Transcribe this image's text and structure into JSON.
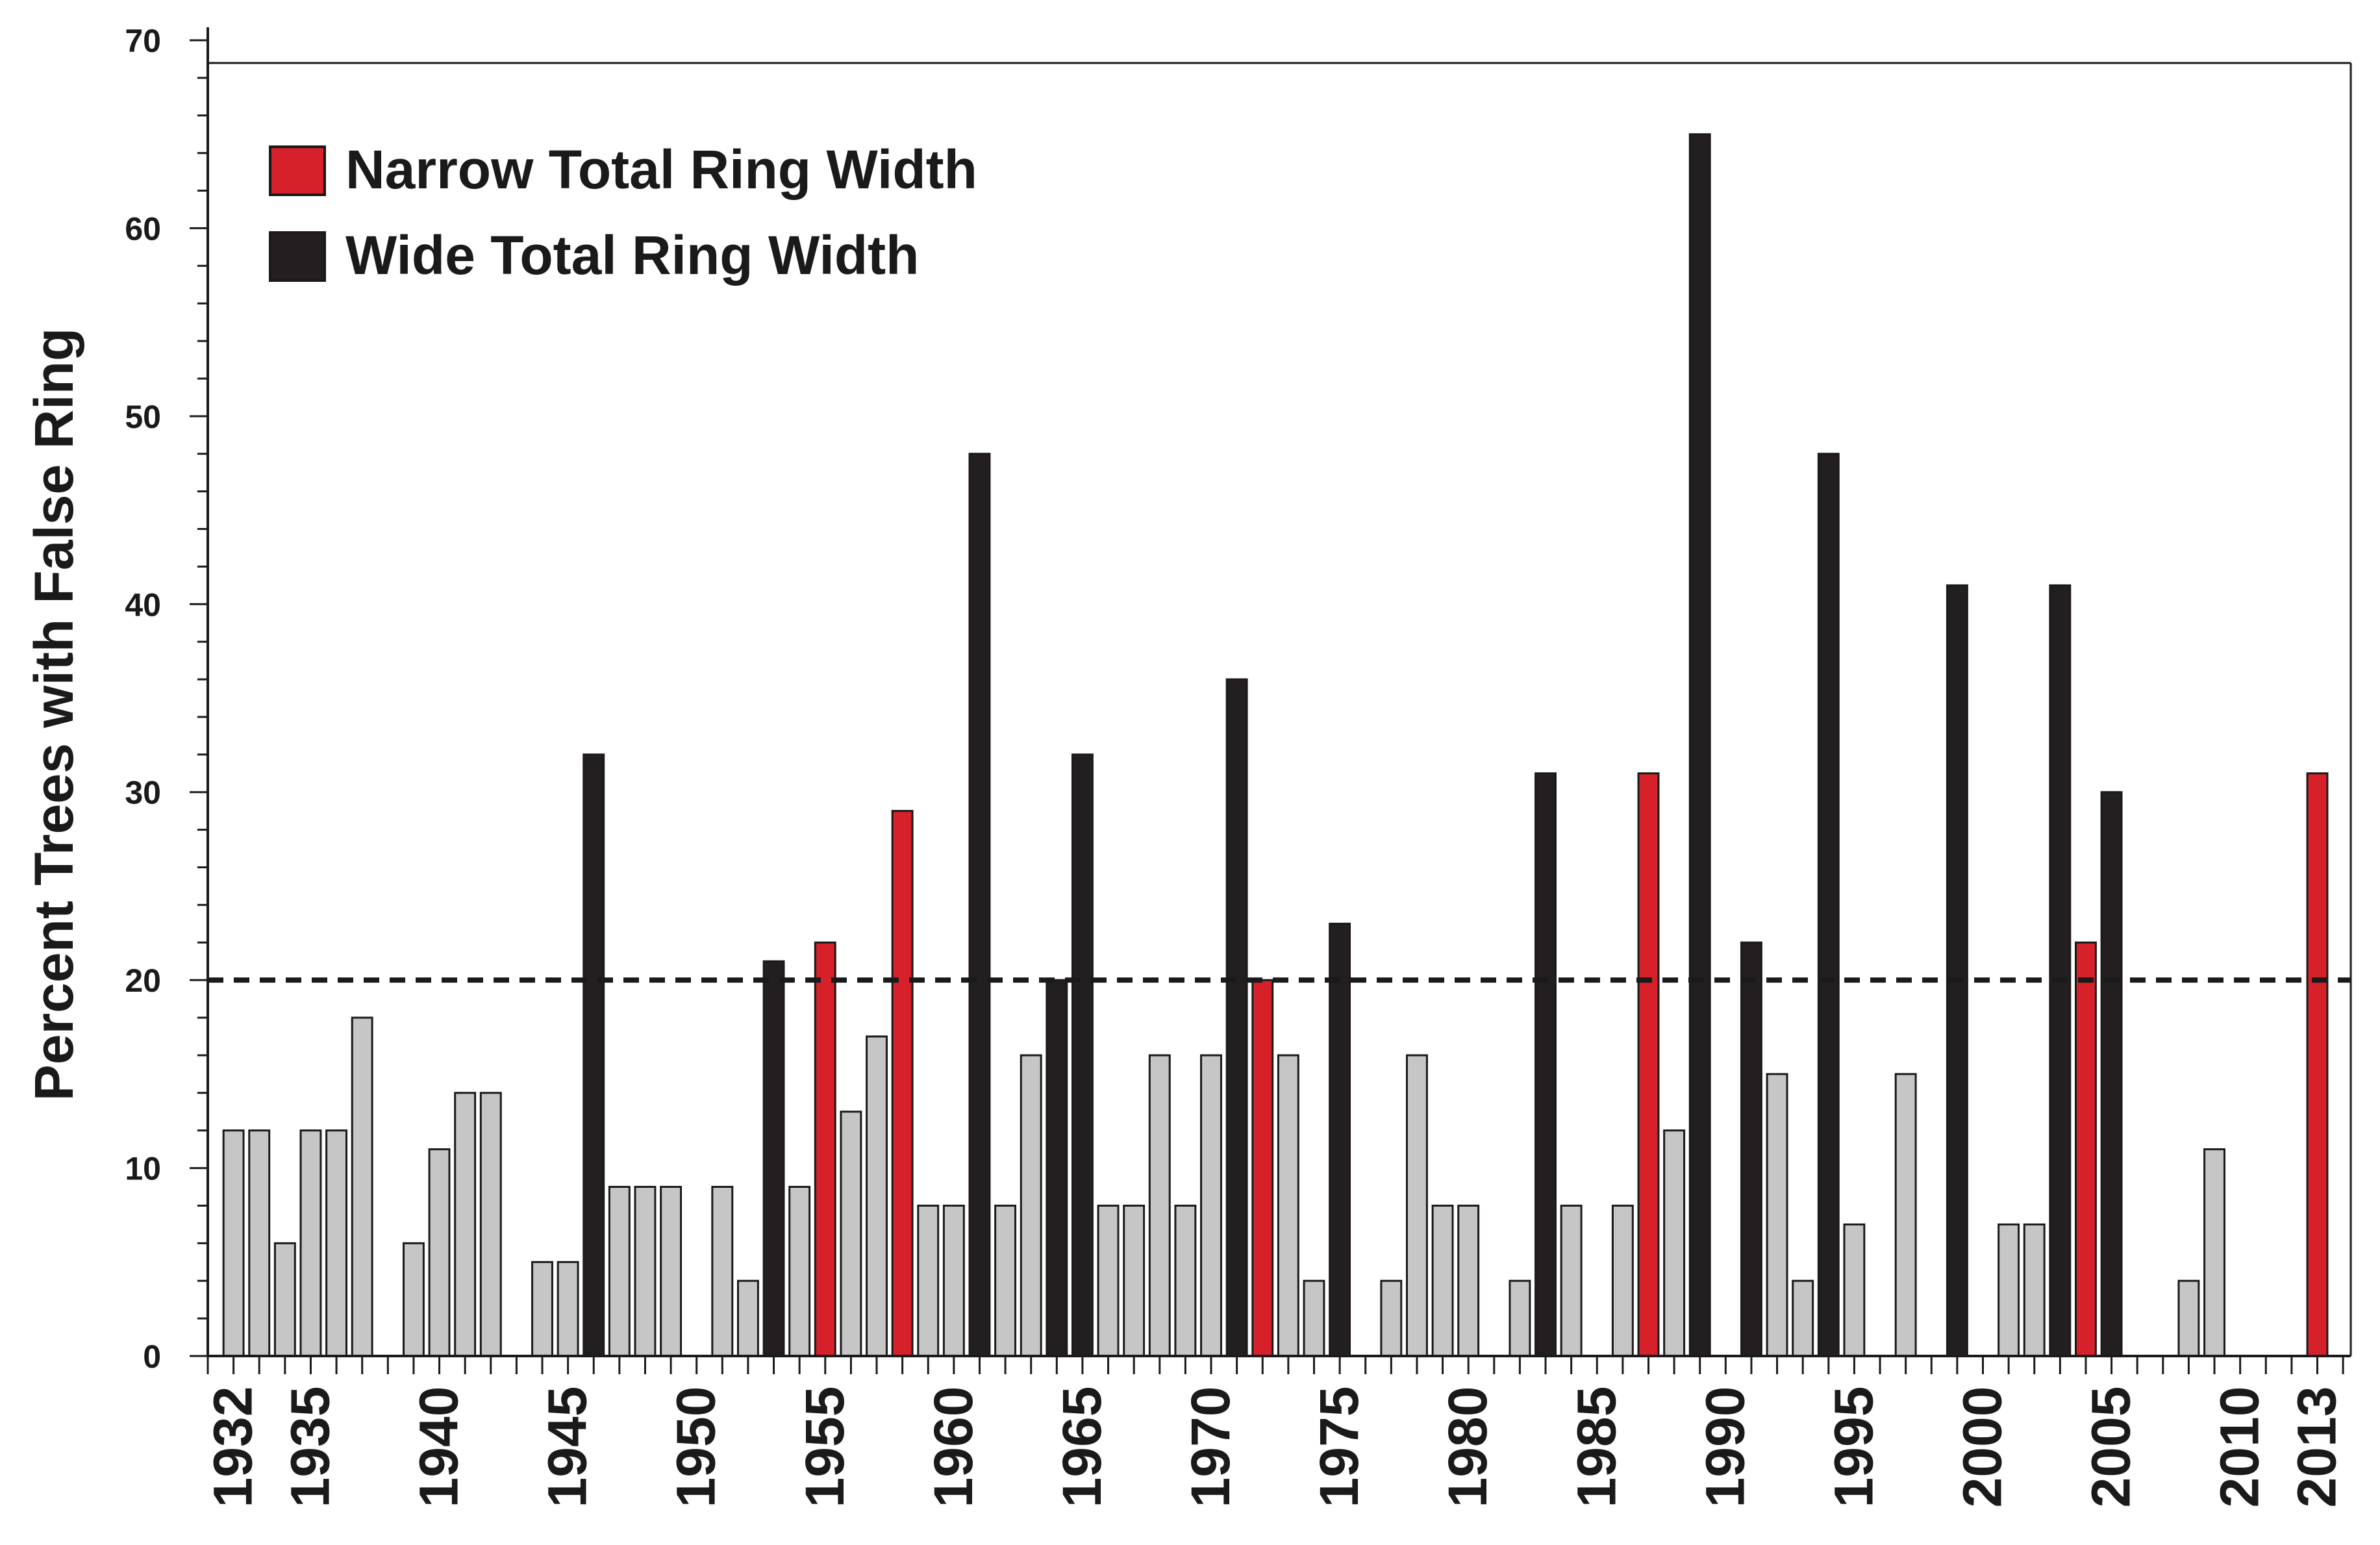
{
  "chart_data": {
    "type": "bar",
    "title": "",
    "xlabel": "",
    "ylabel": "Percent Trees with False Ring",
    "ylim": [
      0,
      70
    ],
    "yticks": [
      0,
      10,
      20,
      30,
      40,
      50,
      60,
      70
    ],
    "xlim": [
      1931,
      2014.3
    ],
    "xtick_labels": [
      "1932",
      "1935",
      "1940",
      "1945",
      "1950",
      "1955",
      "1960",
      "1965",
      "1970",
      "1975",
      "1980",
      "1985",
      "1990",
      "1995",
      "2000",
      "2005",
      "2010",
      "2013"
    ],
    "threshold": 20,
    "grid": false,
    "legend_position": "top-left",
    "legend": [
      {
        "key": "narrow",
        "label": "Narrow Total Ring Width",
        "color": "#d6202a"
      },
      {
        "key": "wide",
        "label": "Wide Total Ring Width",
        "color": "#231f20"
      }
    ],
    "colors": {
      "narrow": "#d6202a",
      "wide": "#231f20",
      "other": "#c6c6c6"
    },
    "bars": [
      {
        "year": 1932,
        "value": 12,
        "category": "other"
      },
      {
        "year": 1933,
        "value": 12,
        "category": "other"
      },
      {
        "year": 1934,
        "value": 6,
        "category": "other"
      },
      {
        "year": 1935,
        "value": 12,
        "category": "other"
      },
      {
        "year": 1936,
        "value": 12,
        "category": "other"
      },
      {
        "year": 1937,
        "value": 18,
        "category": "other"
      },
      {
        "year": 1939,
        "value": 6,
        "category": "other"
      },
      {
        "year": 1940,
        "value": 11,
        "category": "other"
      },
      {
        "year": 1941,
        "value": 14,
        "category": "other"
      },
      {
        "year": 1942,
        "value": 14,
        "category": "other"
      },
      {
        "year": 1944,
        "value": 5,
        "category": "other"
      },
      {
        "year": 1945,
        "value": 5,
        "category": "other"
      },
      {
        "year": 1946,
        "value": 32,
        "category": "wide"
      },
      {
        "year": 1947,
        "value": 9,
        "category": "other"
      },
      {
        "year": 1948,
        "value": 9,
        "category": "other"
      },
      {
        "year": 1949,
        "value": 9,
        "category": "other"
      },
      {
        "year": 1951,
        "value": 9,
        "category": "other"
      },
      {
        "year": 1952,
        "value": 4,
        "category": "other"
      },
      {
        "year": 1953,
        "value": 21,
        "category": "wide"
      },
      {
        "year": 1954,
        "value": 9,
        "category": "other"
      },
      {
        "year": 1955,
        "value": 22,
        "category": "narrow"
      },
      {
        "year": 1956,
        "value": 13,
        "category": "other"
      },
      {
        "year": 1957,
        "value": 17,
        "category": "other"
      },
      {
        "year": 1958,
        "value": 29,
        "category": "narrow"
      },
      {
        "year": 1959,
        "value": 8,
        "category": "other"
      },
      {
        "year": 1960,
        "value": 8,
        "category": "other"
      },
      {
        "year": 1961,
        "value": 48,
        "category": "wide"
      },
      {
        "year": 1962,
        "value": 8,
        "category": "other"
      },
      {
        "year": 1963,
        "value": 16,
        "category": "other"
      },
      {
        "year": 1964,
        "value": 20,
        "category": "wide"
      },
      {
        "year": 1965,
        "value": 32,
        "category": "wide"
      },
      {
        "year": 1966,
        "value": 8,
        "category": "other"
      },
      {
        "year": 1967,
        "value": 8,
        "category": "other"
      },
      {
        "year": 1968,
        "value": 16,
        "category": "other"
      },
      {
        "year": 1969,
        "value": 8,
        "category": "other"
      },
      {
        "year": 1970,
        "value": 16,
        "category": "other"
      },
      {
        "year": 1971,
        "value": 36,
        "category": "wide"
      },
      {
        "year": 1972,
        "value": 20,
        "category": "narrow"
      },
      {
        "year": 1973,
        "value": 16,
        "category": "other"
      },
      {
        "year": 1974,
        "value": 4,
        "category": "other"
      },
      {
        "year": 1975,
        "value": 23,
        "category": "wide"
      },
      {
        "year": 1977,
        "value": 4,
        "category": "other"
      },
      {
        "year": 1978,
        "value": 16,
        "category": "other"
      },
      {
        "year": 1979,
        "value": 8,
        "category": "other"
      },
      {
        "year": 1980,
        "value": 8,
        "category": "other"
      },
      {
        "year": 1982,
        "value": 4,
        "category": "other"
      },
      {
        "year": 1983,
        "value": 31,
        "category": "wide"
      },
      {
        "year": 1984,
        "value": 8,
        "category": "other"
      },
      {
        "year": 1986,
        "value": 8,
        "category": "other"
      },
      {
        "year": 1987,
        "value": 31,
        "category": "narrow"
      },
      {
        "year": 1988,
        "value": 12,
        "category": "other"
      },
      {
        "year": 1989,
        "value": 65,
        "category": "wide"
      },
      {
        "year": 1991,
        "value": 22,
        "category": "wide"
      },
      {
        "year": 1992,
        "value": 15,
        "category": "other"
      },
      {
        "year": 1993,
        "value": 4,
        "category": "other"
      },
      {
        "year": 1994,
        "value": 48,
        "category": "wide"
      },
      {
        "year": 1995,
        "value": 7,
        "category": "other"
      },
      {
        "year": 1997,
        "value": 15,
        "category": "other"
      },
      {
        "year": 1999,
        "value": 41,
        "category": "wide"
      },
      {
        "year": 2001,
        "value": 7,
        "category": "other"
      },
      {
        "year": 2002,
        "value": 7,
        "category": "other"
      },
      {
        "year": 2003,
        "value": 41,
        "category": "wide"
      },
      {
        "year": 2004,
        "value": 22,
        "category": "narrow"
      },
      {
        "year": 2005,
        "value": 30,
        "category": "wide"
      },
      {
        "year": 2008,
        "value": 4,
        "category": "other"
      },
      {
        "year": 2009,
        "value": 11,
        "category": "other"
      },
      {
        "year": 2013,
        "value": 31,
        "category": "narrow"
      }
    ]
  }
}
